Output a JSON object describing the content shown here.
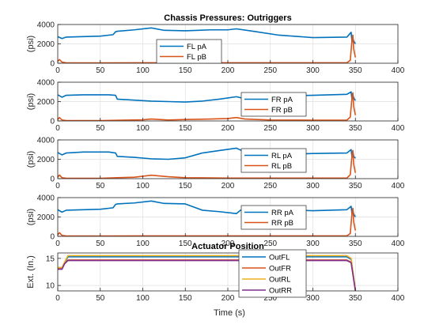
{
  "figure": {
    "xlabel": "Time (s)"
  },
  "chart_data": [
    {
      "type": "line",
      "title": "Chassis Pressures: Outriggers",
      "ylabel": "(psi)",
      "xlim": [
        0,
        400
      ],
      "ylim": [
        0,
        4000
      ],
      "xticks": [
        0,
        50,
        100,
        150,
        200,
        250,
        300,
        350,
        400
      ],
      "yticks": [
        0,
        2000,
        4000
      ],
      "legend_position": "center-left",
      "grid": true,
      "series": [
        {
          "name": "FL pA",
          "color": "#0072BD",
          "x": [
            0,
            5,
            10,
            30,
            50,
            65,
            68,
            70,
            90,
            110,
            125,
            150,
            180,
            200,
            210,
            230,
            260,
            300,
            340,
            345,
            346,
            347,
            348,
            350
          ],
          "y": [
            2750,
            2550,
            2700,
            2750,
            2800,
            2950,
            3250,
            3300,
            3450,
            3650,
            3400,
            3350,
            3450,
            3450,
            3550,
            3300,
            2900,
            2650,
            2700,
            3200,
            2200,
            2600,
            2300,
            2000
          ]
        },
        {
          "name": "FL pB",
          "color": "#D95319",
          "x": [
            0,
            2,
            5,
            10,
            50,
            100,
            200,
            300,
            340,
            344,
            346,
            347,
            348,
            350
          ],
          "y": [
            200,
            380,
            120,
            40,
            40,
            50,
            50,
            50,
            50,
            300,
            2400,
            2900,
            1500,
            600
          ]
        }
      ]
    },
    {
      "type": "line",
      "ylabel": "(psi)",
      "xlim": [
        0,
        400
      ],
      "ylim": [
        0,
        4000
      ],
      "xticks": [
        0,
        50,
        100,
        150,
        200,
        250,
        300,
        350,
        400
      ],
      "yticks": [
        0,
        2000,
        4000
      ],
      "legend_position": "center-right",
      "grid": true,
      "series": [
        {
          "name": "FR pA",
          "color": "#0072BD",
          "x": [
            0,
            5,
            10,
            30,
            60,
            68,
            70,
            90,
            110,
            130,
            150,
            170,
            190,
            210,
            220,
            240,
            270,
            300,
            340,
            345,
            346,
            347,
            348,
            350
          ],
          "y": [
            2700,
            2450,
            2650,
            2700,
            2700,
            2650,
            2250,
            2150,
            2050,
            2000,
            1950,
            2050,
            2250,
            2500,
            2300,
            2500,
            2600,
            2650,
            2750,
            3000,
            2200,
            2700,
            2400,
            2100
          ]
        },
        {
          "name": "FR pB",
          "color": "#D95319",
          "x": [
            0,
            2,
            5,
            10,
            50,
            100,
            110,
            130,
            150,
            180,
            200,
            210,
            220,
            250,
            300,
            340,
            344,
            346,
            347,
            348,
            350
          ],
          "y": [
            150,
            350,
            100,
            40,
            40,
            120,
            200,
            100,
            150,
            200,
            250,
            350,
            200,
            100,
            80,
            80,
            400,
            2400,
            2900,
            1500,
            600
          ]
        }
      ]
    },
    {
      "type": "line",
      "ylabel": "(psi)",
      "xlim": [
        0,
        400
      ],
      "ylim": [
        0,
        4000
      ],
      "xticks": [
        0,
        50,
        100,
        150,
        200,
        250,
        300,
        350,
        400
      ],
      "yticks": [
        0,
        2000,
        4000
      ],
      "legend_position": "center-right",
      "grid": true,
      "series": [
        {
          "name": "RL pA",
          "color": "#0072BD",
          "x": [
            0,
            5,
            10,
            30,
            60,
            68,
            70,
            90,
            110,
            130,
            150,
            170,
            190,
            210,
            220,
            240,
            270,
            300,
            340,
            345,
            346,
            347,
            348,
            350
          ],
          "y": [
            2700,
            2450,
            2650,
            2750,
            2750,
            2650,
            2300,
            2200,
            2050,
            2000,
            2150,
            2650,
            2900,
            3150,
            2750,
            2650,
            2500,
            2600,
            2650,
            3000,
            2200,
            2800,
            2300,
            2100
          ]
        },
        {
          "name": "RL pB",
          "color": "#D95319",
          "x": [
            0,
            2,
            5,
            10,
            50,
            70,
            90,
            110,
            130,
            150,
            200,
            250,
            300,
            340,
            344,
            346,
            347,
            348,
            350
          ],
          "y": [
            150,
            380,
            100,
            40,
            40,
            100,
            150,
            350,
            200,
            100,
            60,
            60,
            60,
            60,
            400,
            2400,
            2900,
            1500,
            600
          ]
        }
      ]
    },
    {
      "type": "line",
      "ylabel": "(psi)",
      "xlim": [
        0,
        400
      ],
      "ylim": [
        0,
        4000
      ],
      "xticks": [
        0,
        50,
        100,
        150,
        200,
        250,
        300,
        350,
        400
      ],
      "yticks": [
        0,
        2000,
        4000
      ],
      "legend_position": "center-right",
      "grid": true,
      "series": [
        {
          "name": "RR pA",
          "color": "#0072BD",
          "x": [
            0,
            5,
            10,
            30,
            50,
            65,
            68,
            70,
            90,
            110,
            125,
            150,
            170,
            190,
            210,
            215,
            230,
            260,
            300,
            340,
            345,
            346,
            347,
            348,
            350
          ],
          "y": [
            2750,
            2500,
            2700,
            2750,
            2800,
            2950,
            3300,
            3350,
            3450,
            3650,
            3400,
            3350,
            2700,
            2550,
            2350,
            2700,
            2850,
            2750,
            2650,
            2750,
            3100,
            2300,
            2700,
            2300,
            2000
          ]
        },
        {
          "name": "RR pB",
          "color": "#D95319",
          "x": [
            0,
            2,
            5,
            10,
            50,
            100,
            200,
            300,
            340,
            344,
            346,
            347,
            348,
            350
          ],
          "y": [
            150,
            380,
            100,
            40,
            40,
            50,
            50,
            50,
            50,
            300,
            2400,
            2900,
            1500,
            600
          ]
        }
      ]
    },
    {
      "type": "line",
      "title": "Actuator Position",
      "ylabel": "Ext. (In.)",
      "xlabel": "Time (s)",
      "xlim": [
        0,
        400
      ],
      "ylim": [
        9,
        16
      ],
      "xticks": [
        0,
        50,
        100,
        150,
        200,
        250,
        300,
        350,
        400
      ],
      "yticks": [
        10,
        15
      ],
      "legend_position": "center-right",
      "grid": true,
      "series": [
        {
          "name": "OutFL",
          "color": "#0072BD",
          "x": [
            0,
            5,
            8,
            12,
            15,
            340,
            345,
            350
          ],
          "y": [
            13.3,
            13.3,
            14.2,
            15.3,
            15.3,
            15.3,
            14.8,
            9.2
          ]
        },
        {
          "name": "OutFR",
          "color": "#D95319",
          "x": [
            0,
            5,
            8,
            12,
            15,
            340,
            345,
            350
          ],
          "y": [
            13.1,
            13.1,
            14.0,
            14.7,
            14.7,
            14.7,
            14.3,
            9.1
          ]
        },
        {
          "name": "OutRL",
          "color": "#EDB120",
          "x": [
            0,
            5,
            8,
            12,
            15,
            340,
            345,
            350
          ],
          "y": [
            13.3,
            13.3,
            14.3,
            15.5,
            15.5,
            15.5,
            15.0,
            9.3
          ]
        },
        {
          "name": "OutRR",
          "color": "#7E2F8E",
          "x": [
            0,
            5,
            8,
            12,
            15,
            340,
            345,
            350
          ],
          "y": [
            13.0,
            13.0,
            14.0,
            14.6,
            14.6,
            14.6,
            14.2,
            9.0
          ]
        }
      ]
    }
  ]
}
